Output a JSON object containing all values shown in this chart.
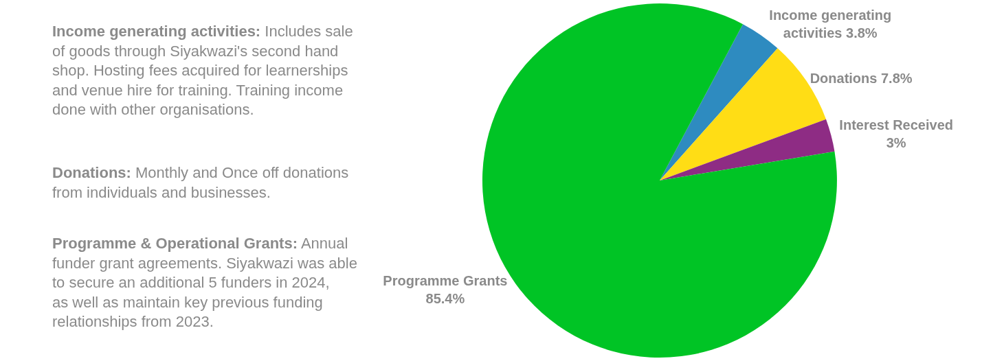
{
  "chart_data": {
    "type": "pie",
    "categories": [
      "Income generating activities",
      "Donations",
      "Interest Received",
      "Programme Grants"
    ],
    "values": [
      3.8,
      7.8,
      3,
      85.4
    ],
    "colors": [
      "#2e8bc0",
      "#ffdd15",
      "#8e2c84",
      "#00c425"
    ],
    "value_labels": [
      "3.8%",
      "7.8%",
      "3%",
      "85.4%"
    ],
    "annotations": [
      "Income generating activities: Includes sale of goods through Siyakwazi's second hand shop. Hosting fees acquired for learnerships and venue hire for training. Training income done with other organisations.",
      "Donations: Monthly and Once off donations from individuals and businesses.",
      "Programme & Operational Grants: Annual funder grant agreements. Siyakwazi was able to secure an additional 5 funders in 2024, as well as maintain key previous funding relationships from 2023."
    ],
    "legend": false
  }
}
